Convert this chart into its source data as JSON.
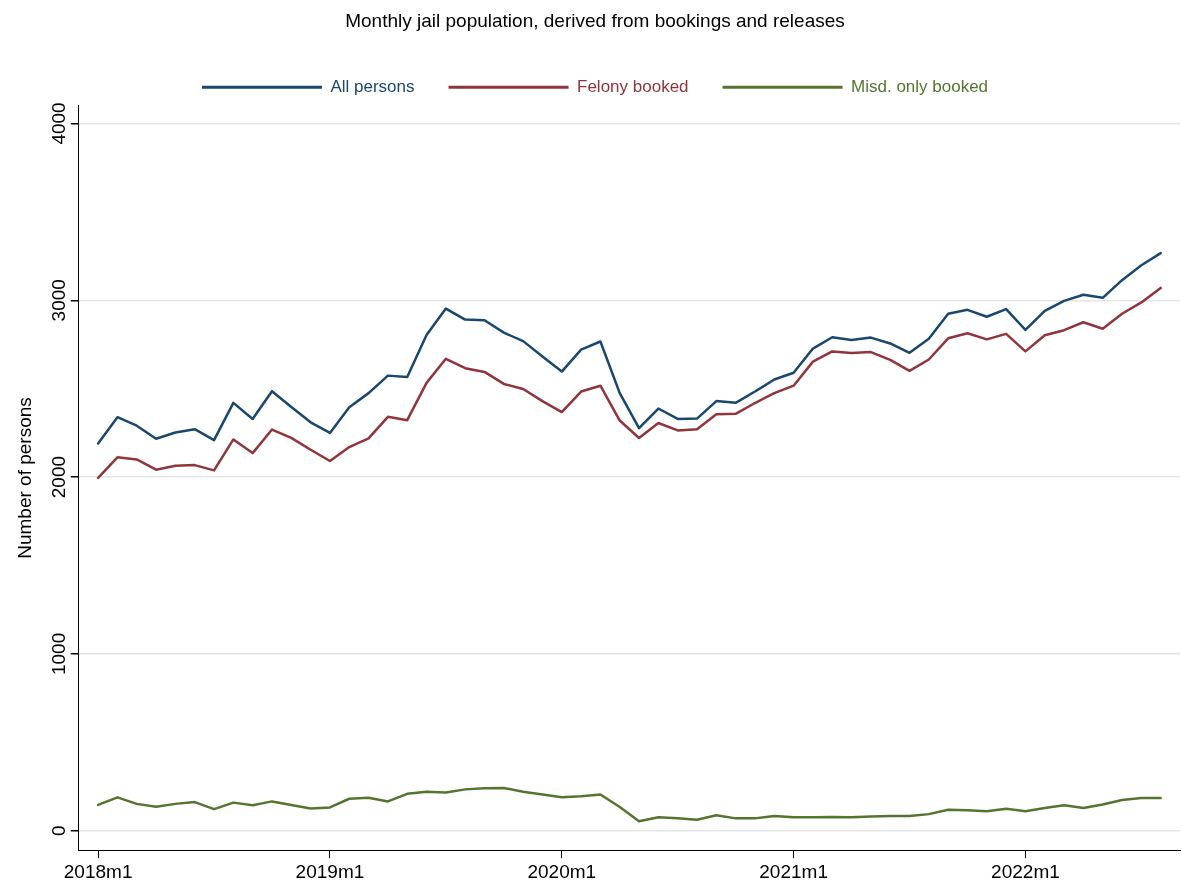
{
  "chart_data": {
    "type": "line",
    "title": "Monthly jail population, derived from bookings and releases",
    "ylabel": "Number of persons",
    "x": [
      "2018-01",
      "2018-02",
      "2018-03",
      "2018-04",
      "2018-05",
      "2018-06",
      "2018-07",
      "2018-08",
      "2018-09",
      "2018-10",
      "2018-11",
      "2018-12",
      "2019-01",
      "2019-02",
      "2019-03",
      "2019-04",
      "2019-05",
      "2019-06",
      "2019-07",
      "2019-08",
      "2019-09",
      "2019-10",
      "2019-11",
      "2019-12",
      "2020-01",
      "2020-02",
      "2020-03",
      "2020-04",
      "2020-05",
      "2020-06",
      "2020-07",
      "2020-08",
      "2020-09",
      "2020-10",
      "2020-11",
      "2020-12",
      "2021-01",
      "2021-02",
      "2021-03",
      "2021-04",
      "2021-05",
      "2021-06",
      "2021-07",
      "2021-08",
      "2021-09",
      "2021-10",
      "2021-11",
      "2021-12",
      "2022-01",
      "2022-02",
      "2022-03",
      "2022-04",
      "2022-05",
      "2022-06",
      "2022-07",
      "2022-08"
    ],
    "series": [
      {
        "name": "All persons",
        "color": "#1a476f",
        "values": [
          2190,
          2339,
          2291,
          2217,
          2252,
          2271,
          2209,
          2420,
          2329,
          2486,
          2397,
          2310,
          2250,
          2395,
          2475,
          2574,
          2566,
          2804,
          2953,
          2891,
          2887,
          2817,
          2769,
          2682,
          2597,
          2721,
          2767,
          2475,
          2277,
          2388,
          2329,
          2331,
          2430,
          2420,
          2484,
          2552,
          2590,
          2727,
          2791,
          2775,
          2789,
          2756,
          2703,
          2783,
          2924,
          2946,
          2907,
          2950,
          2833,
          2940,
          2997,
          3031,
          3014,
          3114,
          3198,
          3267
        ]
      },
      {
        "name": "Felony booked",
        "color": "#90353b",
        "values": [
          1996,
          2112,
          2100,
          2042,
          2064,
          2068,
          2038,
          2213,
          2136,
          2269,
          2222,
          2155,
          2091,
          2170,
          2219,
          2341,
          2322,
          2533,
          2669,
          2616,
          2595,
          2527,
          2498,
          2430,
          2368,
          2484,
          2517,
          2320,
          2221,
          2306,
          2264,
          2271,
          2356,
          2358,
          2419,
          2475,
          2517,
          2653,
          2711,
          2702,
          2707,
          2663,
          2601,
          2665,
          2785,
          2814,
          2779,
          2810,
          2711,
          2802,
          2831,
          2876,
          2839,
          2924,
          2988,
          3070
        ]
      },
      {
        "name": "Misd. only booked",
        "color": "#55752f",
        "values": [
          146,
          189,
          152,
          136,
          152,
          162,
          122,
          159,
          144,
          166,
          146,
          126,
          132,
          181,
          187,
          166,
          209,
          220,
          216,
          234,
          240,
          242,
          220,
          205,
          189,
          195,
          205,
          134,
          54,
          76,
          70,
          62,
          88,
          70,
          70,
          84,
          76,
          76,
          78,
          76,
          80,
          84,
          84,
          94,
          119,
          116,
          110,
          124,
          110,
          129,
          144,
          129,
          148,
          174,
          185,
          185
        ]
      }
    ],
    "xlim": [
      "2017-12",
      "2022-09"
    ],
    "xticks": [
      {
        "value": "2018-01",
        "label": "2018m1"
      },
      {
        "value": "2019-01",
        "label": "2019m1"
      },
      {
        "value": "2020-01",
        "label": "2020m1"
      },
      {
        "value": "2021-01",
        "label": "2021m1"
      },
      {
        "value": "2022-01",
        "label": "2022m1"
      }
    ],
    "ylim": [
      -110,
      4100
    ],
    "yticks": [
      0,
      1000,
      2000,
      3000,
      4000
    ],
    "grid": "y",
    "legend": "top",
    "marker": "none",
    "line_style": "solid"
  }
}
